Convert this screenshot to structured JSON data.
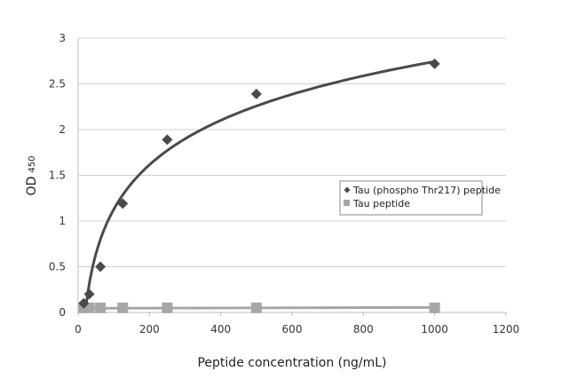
{
  "chart_data": {
    "type": "scatter",
    "title": "",
    "xlabel": "Peptide concentration (ng/mL)",
    "ylabel": "OD",
    "ylabel_subscript": "450",
    "xlim": [
      0,
      1200
    ],
    "ylim": [
      0,
      3
    ],
    "xticks": [
      0,
      200,
      400,
      600,
      800,
      1000,
      1200
    ],
    "yticks": [
      0,
      0.5,
      1,
      1.5,
      2,
      2.5,
      3
    ],
    "ytick_labels": [
      "0",
      "0.5",
      "1",
      "1.5",
      "2",
      "2.5",
      "3"
    ],
    "grid": "horizontal",
    "legend_position": "right",
    "series": [
      {
        "name": "Tau (phospho Thr217) peptide",
        "marker": "diamond",
        "color": "#4a4a4a",
        "trendline": "logarithmic",
        "x": [
          15.6,
          31.25,
          62.5,
          125,
          250,
          500,
          1000
        ],
        "y": [
          0.1,
          0.2,
          0.5,
          1.19,
          1.89,
          2.39,
          2.72
        ]
      },
      {
        "name": "Tau peptide",
        "marker": "square",
        "color": "#a6a6a6",
        "trendline": "linear",
        "x": [
          15.6,
          31.25,
          62.5,
          125,
          250,
          500,
          1000
        ],
        "y": [
          0.05,
          0.05,
          0.05,
          0.05,
          0.05,
          0.05,
          0.05
        ]
      }
    ]
  }
}
